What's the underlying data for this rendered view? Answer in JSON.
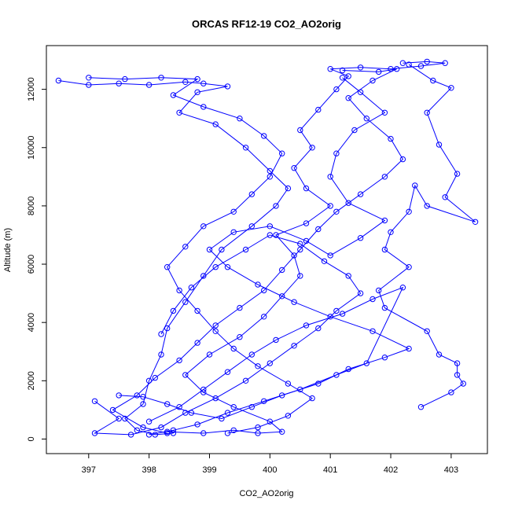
{
  "chart_data": {
    "type": "line",
    "title": "ORCAS RF12-19 CO2_AO2orig",
    "xlabel": "CO2_AO2orig",
    "ylabel": "Altitude (m)",
    "xlim": [
      396.3,
      403.6
    ],
    "ylim": [
      -500,
      13500
    ],
    "xticks": [
      397,
      398,
      399,
      400,
      401,
      402,
      403
    ],
    "yticks": [
      0,
      2000,
      4000,
      6000,
      8000,
      10000,
      12000
    ],
    "grid": false,
    "legend": "none",
    "marker": "open-circle",
    "color": "#0000ff",
    "series": [
      {
        "values": [
          {
            "x": 396.5,
            "y": 12300
          },
          {
            "x": 397.0,
            "y": 12150
          },
          {
            "x": 397.5,
            "y": 12200
          },
          {
            "x": 398.0,
            "y": 12150
          },
          {
            "x": 398.6,
            "y": 12250
          },
          {
            "x": 398.9,
            "y": 12200
          },
          {
            "x": 399.3,
            "y": 12100
          },
          {
            "x": 398.8,
            "y": 11900
          },
          {
            "x": 398.5,
            "y": 11200
          },
          {
            "x": 399.1,
            "y": 10800
          },
          {
            "x": 399.6,
            "y": 10000
          },
          {
            "x": 400.0,
            "y": 9200
          },
          {
            "x": 400.3,
            "y": 8600
          },
          {
            "x": 400.1,
            "y": 8000
          },
          {
            "x": 399.7,
            "y": 7300
          },
          {
            "x": 399.2,
            "y": 6500
          },
          {
            "x": 398.9,
            "y": 5600
          },
          {
            "x": 398.6,
            "y": 4700
          },
          {
            "x": 398.3,
            "y": 3800
          },
          {
            "x": 398.2,
            "y": 2900
          },
          {
            "x": 398.0,
            "y": 2000
          },
          {
            "x": 397.9,
            "y": 1200
          },
          {
            "x": 397.6,
            "y": 700
          },
          {
            "x": 397.8,
            "y": 300
          },
          {
            "x": 398.1,
            "y": 150
          },
          {
            "x": 398.4,
            "y": 200
          }
        ]
      },
      {
        "values": [
          {
            "x": 398.3,
            "y": 250
          },
          {
            "x": 398.9,
            "y": 200
          },
          {
            "x": 399.4,
            "y": 300
          },
          {
            "x": 399.8,
            "y": 200
          },
          {
            "x": 400.2,
            "y": 250
          },
          {
            "x": 400.0,
            "y": 600
          },
          {
            "x": 399.4,
            "y": 1100
          },
          {
            "x": 398.9,
            "y": 1600
          },
          {
            "x": 398.6,
            "y": 2200
          },
          {
            "x": 399.0,
            "y": 2900
          },
          {
            "x": 399.5,
            "y": 3500
          },
          {
            "x": 399.9,
            "y": 4200
          },
          {
            "x": 400.2,
            "y": 4900
          },
          {
            "x": 400.5,
            "y": 5600
          },
          {
            "x": 400.4,
            "y": 6300
          },
          {
            "x": 400.1,
            "y": 7000
          },
          {
            "x": 400.6,
            "y": 7400
          },
          {
            "x": 401.0,
            "y": 8000
          },
          {
            "x": 400.6,
            "y": 8600
          },
          {
            "x": 400.4,
            "y": 9300
          },
          {
            "x": 400.7,
            "y": 10000
          },
          {
            "x": 400.5,
            "y": 10600
          },
          {
            "x": 400.8,
            "y": 11300
          },
          {
            "x": 401.1,
            "y": 12000
          },
          {
            "x": 401.3,
            "y": 12450
          },
          {
            "x": 401.0,
            "y": 12700
          },
          {
            "x": 401.5,
            "y": 12750
          },
          {
            "x": 402.0,
            "y": 12700
          },
          {
            "x": 402.5,
            "y": 12800
          },
          {
            "x": 402.9,
            "y": 12900
          },
          {
            "x": 402.6,
            "y": 12950
          },
          {
            "x": 402.2,
            "y": 12900
          }
        ]
      },
      {
        "values": [
          {
            "x": 402.3,
            "y": 12850
          },
          {
            "x": 402.7,
            "y": 12300
          },
          {
            "x": 403.0,
            "y": 12050
          },
          {
            "x": 402.6,
            "y": 11200
          },
          {
            "x": 402.8,
            "y": 10100
          },
          {
            "x": 403.1,
            "y": 9100
          },
          {
            "x": 402.9,
            "y": 8300
          },
          {
            "x": 403.4,
            "y": 7450
          },
          {
            "x": 402.6,
            "y": 8000
          },
          {
            "x": 402.4,
            "y": 8700
          },
          {
            "x": 402.3,
            "y": 7800
          },
          {
            "x": 402.0,
            "y": 7100
          },
          {
            "x": 401.9,
            "y": 6500
          },
          {
            "x": 402.3,
            "y": 5900
          },
          {
            "x": 401.8,
            "y": 5100
          },
          {
            "x": 401.9,
            "y": 4500
          },
          {
            "x": 402.6,
            "y": 3700
          },
          {
            "x": 402.8,
            "y": 2900
          },
          {
            "x": 403.1,
            "y": 2600
          },
          {
            "x": 403.1,
            "y": 2200
          },
          {
            "x": 403.2,
            "y": 1900
          },
          {
            "x": 403.0,
            "y": 1600
          },
          {
            "x": 402.5,
            "y": 1100
          }
        ]
      },
      {
        "values": [
          {
            "x": 397.5,
            "y": 1500
          },
          {
            "x": 397.9,
            "y": 1450
          },
          {
            "x": 398.3,
            "y": 1200
          },
          {
            "x": 398.7,
            "y": 900
          },
          {
            "x": 399.2,
            "y": 700
          },
          {
            "x": 399.7,
            "y": 1100
          },
          {
            "x": 400.2,
            "y": 1500
          },
          {
            "x": 400.8,
            "y": 1900
          },
          {
            "x": 401.3,
            "y": 2400
          },
          {
            "x": 401.9,
            "y": 2800
          },
          {
            "x": 402.3,
            "y": 3100
          },
          {
            "x": 401.7,
            "y": 3700
          },
          {
            "x": 401.0,
            "y": 4200
          },
          {
            "x": 400.4,
            "y": 4700
          },
          {
            "x": 399.8,
            "y": 5300
          },
          {
            "x": 399.3,
            "y": 5900
          },
          {
            "x": 399.0,
            "y": 6500
          },
          {
            "x": 399.4,
            "y": 7100
          },
          {
            "x": 400.0,
            "y": 7300
          },
          {
            "x": 400.6,
            "y": 6800
          },
          {
            "x": 401.0,
            "y": 6300
          },
          {
            "x": 401.5,
            "y": 6900
          },
          {
            "x": 401.9,
            "y": 7500
          },
          {
            "x": 401.3,
            "y": 8100
          },
          {
            "x": 401.0,
            "y": 9000
          },
          {
            "x": 401.1,
            "y": 9800
          },
          {
            "x": 401.4,
            "y": 10600
          },
          {
            "x": 401.9,
            "y": 11200
          },
          {
            "x": 401.5,
            "y": 11900
          },
          {
            "x": 401.2,
            "y": 12400
          }
        ]
      },
      {
        "values": [
          {
            "x": 397.1,
            "y": 1300
          },
          {
            "x": 397.5,
            "y": 700
          },
          {
            "x": 397.1,
            "y": 200
          },
          {
            "x": 397.7,
            "y": 150
          },
          {
            "x": 398.2,
            "y": 400
          },
          {
            "x": 398.6,
            "y": 900
          },
          {
            "x": 399.1,
            "y": 1400
          },
          {
            "x": 399.6,
            "y": 2000
          },
          {
            "x": 400.0,
            "y": 2600
          },
          {
            "x": 400.4,
            "y": 3200
          },
          {
            "x": 400.8,
            "y": 3800
          },
          {
            "x": 401.1,
            "y": 4400
          },
          {
            "x": 401.5,
            "y": 5000
          },
          {
            "x": 401.3,
            "y": 5600
          },
          {
            "x": 400.9,
            "y": 6100
          },
          {
            "x": 400.5,
            "y": 6700
          },
          {
            "x": 400.0,
            "y": 7000
          },
          {
            "x": 399.6,
            "y": 6500
          },
          {
            "x": 399.1,
            "y": 5900
          },
          {
            "x": 398.7,
            "y": 5200
          },
          {
            "x": 398.4,
            "y": 4400
          },
          {
            "x": 398.2,
            "y": 3600
          }
        ]
      },
      {
        "values": [
          {
            "x": 398.0,
            "y": 600
          },
          {
            "x": 398.5,
            "y": 1100
          },
          {
            "x": 398.9,
            "y": 1700
          },
          {
            "x": 399.3,
            "y": 2300
          },
          {
            "x": 399.7,
            "y": 2900
          },
          {
            "x": 400.1,
            "y": 3400
          },
          {
            "x": 400.6,
            "y": 3900
          },
          {
            "x": 401.2,
            "y": 4300
          },
          {
            "x": 401.7,
            "y": 4800
          },
          {
            "x": 402.2,
            "y": 5200
          },
          {
            "x": 401.6,
            "y": 2600
          },
          {
            "x": 401.1,
            "y": 2200
          },
          {
            "x": 400.5,
            "y": 1700
          },
          {
            "x": 399.9,
            "y": 1300
          },
          {
            "x": 399.3,
            "y": 900
          },
          {
            "x": 398.8,
            "y": 500
          },
          {
            "x": 398.4,
            "y": 300
          },
          {
            "x": 398.0,
            "y": 150
          }
        ]
      },
      {
        "values": [
          {
            "x": 397.0,
            "y": 12400
          },
          {
            "x": 397.6,
            "y": 12350
          },
          {
            "x": 398.2,
            "y": 12400
          },
          {
            "x": 398.8,
            "y": 12350
          },
          {
            "x": 398.4,
            "y": 11800
          },
          {
            "x": 398.9,
            "y": 11400
          },
          {
            "x": 399.5,
            "y": 11000
          },
          {
            "x": 399.9,
            "y": 10400
          },
          {
            "x": 400.2,
            "y": 9800
          },
          {
            "x": 400.0,
            "y": 9000
          },
          {
            "x": 399.7,
            "y": 8400
          },
          {
            "x": 399.4,
            "y": 7800
          },
          {
            "x": 398.9,
            "y": 7300
          },
          {
            "x": 398.6,
            "y": 6600
          },
          {
            "x": 398.3,
            "y": 5900
          },
          {
            "x": 398.5,
            "y": 5100
          },
          {
            "x": 398.8,
            "y": 4400
          },
          {
            "x": 399.1,
            "y": 3700
          },
          {
            "x": 399.4,
            "y": 3100
          },
          {
            "x": 399.8,
            "y": 2500
          },
          {
            "x": 400.3,
            "y": 1900
          },
          {
            "x": 400.7,
            "y": 1400
          },
          {
            "x": 400.3,
            "y": 800
          },
          {
            "x": 399.8,
            "y": 400
          },
          {
            "x": 399.3,
            "y": 200
          }
        ]
      },
      {
        "values": [
          {
            "x": 401.2,
            "y": 12650
          },
          {
            "x": 401.8,
            "y": 12600
          },
          {
            "x": 402.1,
            "y": 12700
          },
          {
            "x": 401.7,
            "y": 12300
          },
          {
            "x": 401.3,
            "y": 11700
          },
          {
            "x": 401.6,
            "y": 11000
          },
          {
            "x": 402.0,
            "y": 10300
          },
          {
            "x": 402.2,
            "y": 9600
          },
          {
            "x": 401.9,
            "y": 9000
          },
          {
            "x": 401.5,
            "y": 8400
          },
          {
            "x": 401.1,
            "y": 7800
          },
          {
            "x": 400.8,
            "y": 7200
          },
          {
            "x": 400.5,
            "y": 6500
          },
          {
            "x": 400.2,
            "y": 5800
          },
          {
            "x": 399.9,
            "y": 5100
          },
          {
            "x": 399.5,
            "y": 4500
          },
          {
            "x": 399.1,
            "y": 3900
          },
          {
            "x": 398.8,
            "y": 3300
          },
          {
            "x": 398.5,
            "y": 2700
          },
          {
            "x": 398.1,
            "y": 2100
          },
          {
            "x": 397.8,
            "y": 1500
          },
          {
            "x": 397.4,
            "y": 1000
          },
          {
            "x": 397.9,
            "y": 400
          },
          {
            "x": 398.3,
            "y": 200
          }
        ]
      }
    ]
  }
}
